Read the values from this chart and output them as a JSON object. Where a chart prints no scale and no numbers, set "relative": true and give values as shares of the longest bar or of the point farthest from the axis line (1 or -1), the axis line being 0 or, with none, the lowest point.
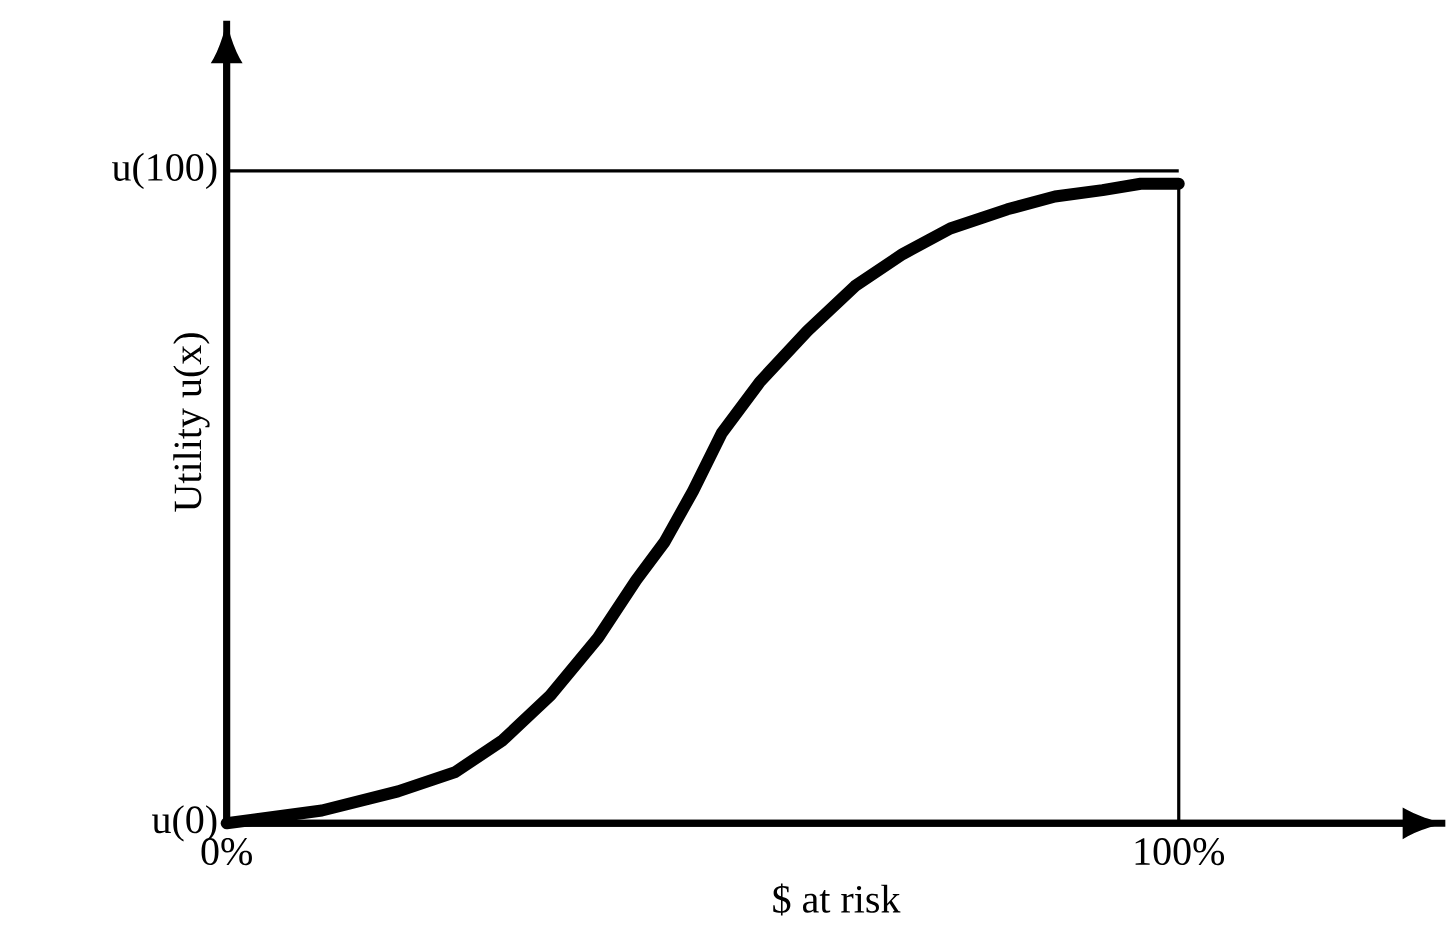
{
  "chart_data": {
    "type": "line",
    "xlabel": "$ at risk",
    "ylabel": "Utility u(x)",
    "color": "#000000",
    "relative": true,
    "x": [
      0,
      5,
      10,
      18,
      24,
      29,
      34,
      39,
      43,
      46,
      49,
      52,
      56,
      61,
      66,
      71,
      76,
      82,
      87,
      92,
      96,
      100
    ],
    "values": [
      0,
      0.01,
      0.02,
      0.05,
      0.08,
      0.13,
      0.2,
      0.29,
      0.38,
      0.44,
      0.52,
      0.61,
      0.69,
      0.77,
      0.84,
      0.89,
      0.93,
      0.96,
      0.98,
      0.99,
      1,
      1
    ],
    "xlim": [
      0,
      128
    ],
    "xticks": [
      {
        "value": 0,
        "label": "0%"
      },
      {
        "value": 100,
        "label": "100%"
      }
    ],
    "annotations": [
      {
        "text": "u(100)",
        "x": 0,
        "y": 1.02
      },
      {
        "text": "u(0)",
        "x": 0,
        "y": 0
      }
    ],
    "ref_lines": [
      {
        "axis": "y",
        "value": 1.02
      },
      {
        "axis": "x",
        "value": 100
      }
    ]
  }
}
